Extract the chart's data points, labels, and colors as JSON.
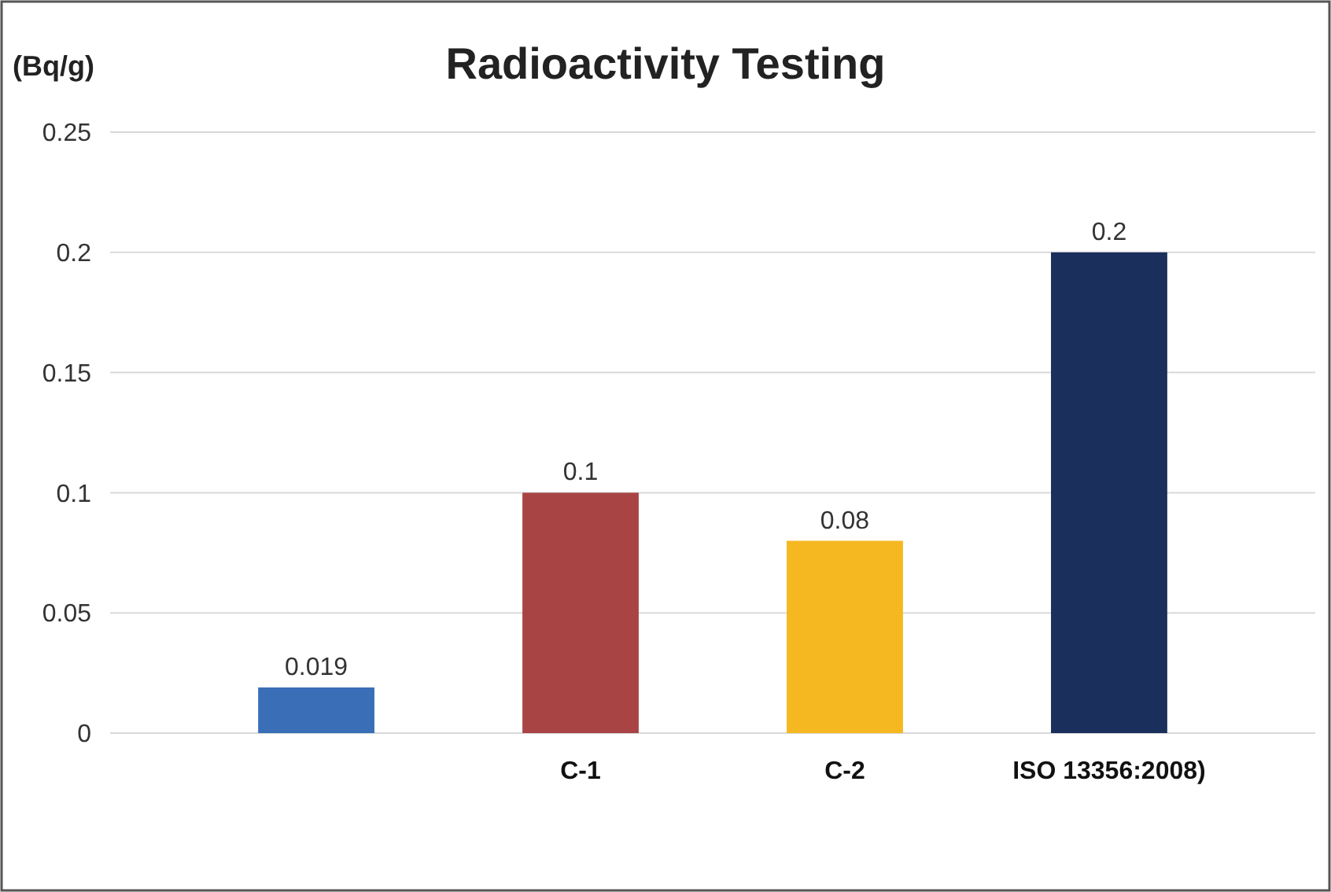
{
  "chart_data": {
    "type": "bar",
    "title": "Radioactivity Testing",
    "ylabel": "(Bq/g)",
    "categories": [
      null,
      "C-1",
      "C-2",
      "ISO 13356:2008)"
    ],
    "values": [
      0.019,
      0.1,
      0.08,
      0.2
    ],
    "colors": [
      "#3a6fb8",
      "#a84444",
      "#f5b820",
      "#1b2f5c"
    ],
    "ylim": [
      0,
      0.25
    ],
    "yticks": [
      0,
      0.05,
      0.1,
      0.15,
      0.2,
      0.25
    ],
    "grid": "y",
    "data_labels": true
  }
}
